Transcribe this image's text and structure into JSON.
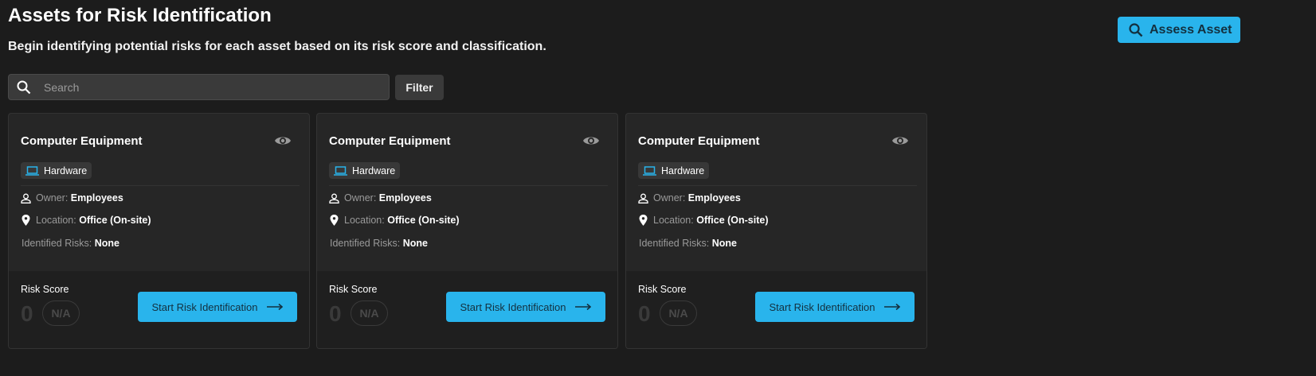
{
  "header": {
    "title": "Assets for Risk Identification",
    "subtitle": "Begin identifying potential risks for each asset based on its risk score and classification.",
    "assess_label": "Assess Asset"
  },
  "search": {
    "placeholder": "Search",
    "value": ""
  },
  "filter_label": "Filter",
  "colors": {
    "accent": "#29b4ec"
  },
  "cards": [
    {
      "title": "Computer Equipment",
      "category": "Hardware",
      "owner_label": "Owner:",
      "owner": "Employees",
      "location_label": "Location:",
      "location": "Office (On-site)",
      "risks_label": "Identified Risks:",
      "risks": "None",
      "risk_score_label": "Risk Score",
      "risk_score": "0",
      "risk_level": "N/A",
      "action": "Start Risk Identification"
    },
    {
      "title": "Computer Equipment",
      "category": "Hardware",
      "owner_label": "Owner:",
      "owner": "Employees",
      "location_label": "Location:",
      "location": "Office (On-site)",
      "risks_label": "Identified Risks:",
      "risks": "None",
      "risk_score_label": "Risk Score",
      "risk_score": "0",
      "risk_level": "N/A",
      "action": "Start Risk Identification"
    },
    {
      "title": "Computer Equipment",
      "category": "Hardware",
      "owner_label": "Owner:",
      "owner": "Employees",
      "location_label": "Location:",
      "location": "Office (On-site)",
      "risks_label": "Identified Risks:",
      "risks": "None",
      "risk_score_label": "Risk Score",
      "risk_score": "0",
      "risk_level": "N/A",
      "action": "Start Risk Identification"
    }
  ]
}
